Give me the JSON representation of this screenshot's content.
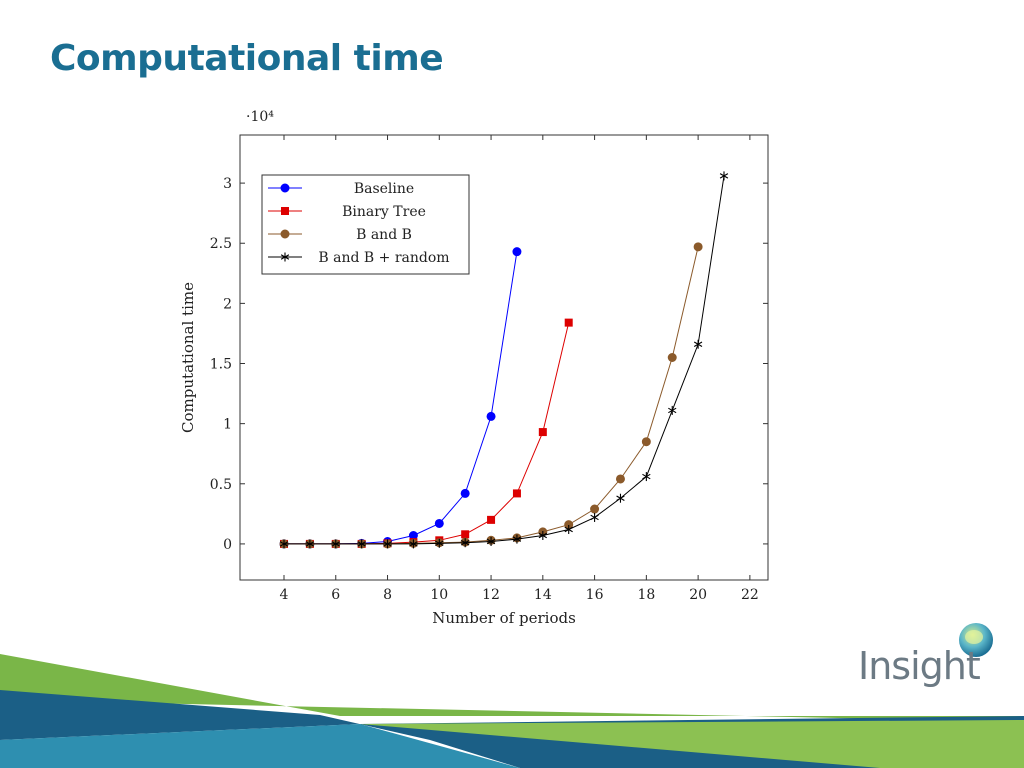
{
  "slide": {
    "title": "Computational time",
    "logo_text": "Insight"
  },
  "colors": {
    "title": "#1a6e92",
    "band_green": "#7ab648",
    "band_blue": "#1b5f86",
    "band_teal": "#2e8fb0"
  },
  "chart_data": {
    "type": "line",
    "xlabel": "Number of periods",
    "ylabel": "Computational time",
    "yscale_label": "·10⁴",
    "xlim": [
      2.3,
      22.7
    ],
    "ylim": [
      -0.3,
      3.4
    ],
    "xticks": [
      4,
      6,
      8,
      10,
      12,
      14,
      16,
      18,
      20,
      22
    ],
    "yticks": [
      0,
      0.5,
      1,
      1.5,
      2,
      2.5,
      3
    ],
    "ytick_labels": [
      "0",
      "0.5",
      "1",
      "1.5",
      "2",
      "2.5",
      "3"
    ],
    "legend_position": "top-left",
    "series": [
      {
        "name": "Baseline",
        "color": "#0000ff",
        "marker": "circle",
        "x": [
          4,
          5,
          6,
          7,
          8,
          9,
          10,
          11,
          12,
          13
        ],
        "y": [
          0,
          0,
          0,
          0.005,
          0.02,
          0.07,
          0.17,
          0.42,
          1.06,
          2.43
        ]
      },
      {
        "name": "Binary Tree",
        "color": "#dd0000",
        "marker": "square",
        "x": [
          4,
          5,
          6,
          7,
          8,
          9,
          10,
          11,
          12,
          13,
          14,
          15
        ],
        "y": [
          0,
          0,
          0,
          0,
          0.005,
          0.015,
          0.03,
          0.08,
          0.2,
          0.42,
          0.93,
          1.84
        ]
      },
      {
        "name": "B and B",
        "color": "#8b5a2b",
        "marker": "circle",
        "x": [
          4,
          5,
          6,
          7,
          8,
          9,
          10,
          11,
          12,
          13,
          14,
          15,
          16,
          17,
          18,
          19,
          20
        ],
        "y": [
          0,
          0,
          0,
          0,
          0,
          0.005,
          0.01,
          0.015,
          0.03,
          0.05,
          0.1,
          0.16,
          0.29,
          0.54,
          0.85,
          1.55,
          2.47
        ]
      },
      {
        "name": "B and B + random",
        "color": "#000000",
        "marker": "star",
        "x": [
          4,
          5,
          6,
          7,
          8,
          9,
          10,
          11,
          12,
          13,
          14,
          15,
          16,
          17,
          18,
          19,
          20,
          21
        ],
        "y": [
          0,
          0,
          0,
          0,
          0,
          0,
          0.005,
          0.01,
          0.02,
          0.04,
          0.07,
          0.12,
          0.22,
          0.38,
          0.56,
          1.11,
          1.66,
          3.06
        ]
      }
    ]
  }
}
